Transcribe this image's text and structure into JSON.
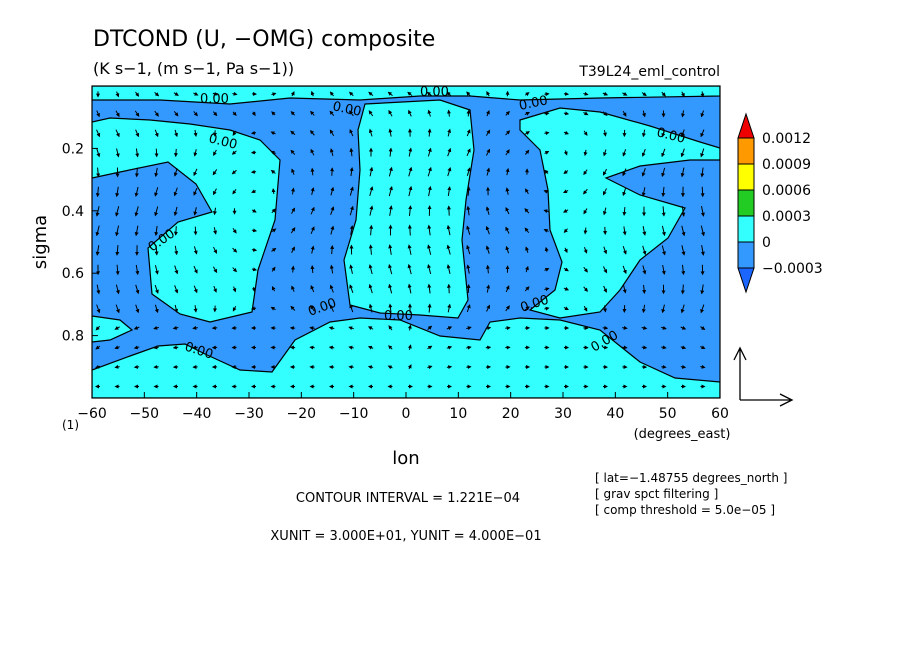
{
  "title": "DTCOND (U, −OMG) composite",
  "units": "(K s−1, (m s−1, Pa s−1))",
  "run_label": "T39L24_eml_control",
  "side_info": [
    "[ lat=−1.48755 degrees_north ]",
    "[ grav spct filtering ]",
    "[ comp threshold = 5.0e−05 ]"
  ],
  "contour_interval": "CONTOUR INTERVAL = 1.221E−04",
  "unit_vectors": "XUNIT = 3.000E+01, YUNIT = 4.000E−01",
  "chart_data": {
    "type": "heatmap",
    "xlabel": "lon",
    "xunits": "(degrees_east)",
    "ylabel": "sigma",
    "xlim": [
      -60,
      60
    ],
    "ylim": [
      1.0,
      0.0
    ],
    "x_ticks": [
      "−60",
      "−50",
      "−40",
      "−30",
      "−20",
      "−10",
      "0",
      "10",
      "20",
      "30",
      "40",
      "50",
      "60"
    ],
    "y_ticks": [
      "0.2",
      "0.4",
      "0.6",
      "0.8"
    ],
    "y_axis_note": "(1)",
    "contour_labels": [
      "0.00",
      "0.00",
      "0.00",
      "0.00",
      "0.00",
      "0.00",
      "0.00",
      "0.00",
      "0.00",
      "0.00",
      "0.00",
      "0.00"
    ],
    "colorbar": {
      "levels": [
        "0.0012",
        "0.0009",
        "0.0006",
        "0.0003",
        "0",
        "−0.0003"
      ],
      "colors": [
        "#ee0000",
        "#ff9900",
        "#ffff00",
        "#22cc22",
        "#33ffff",
        "#3399ff",
        "#1a66ff"
      ]
    },
    "fill_colors": {
      "negative": "#3399ff",
      "positive": "#33ffff"
    },
    "vector_field": "wind vectors (U, −OMG)"
  }
}
